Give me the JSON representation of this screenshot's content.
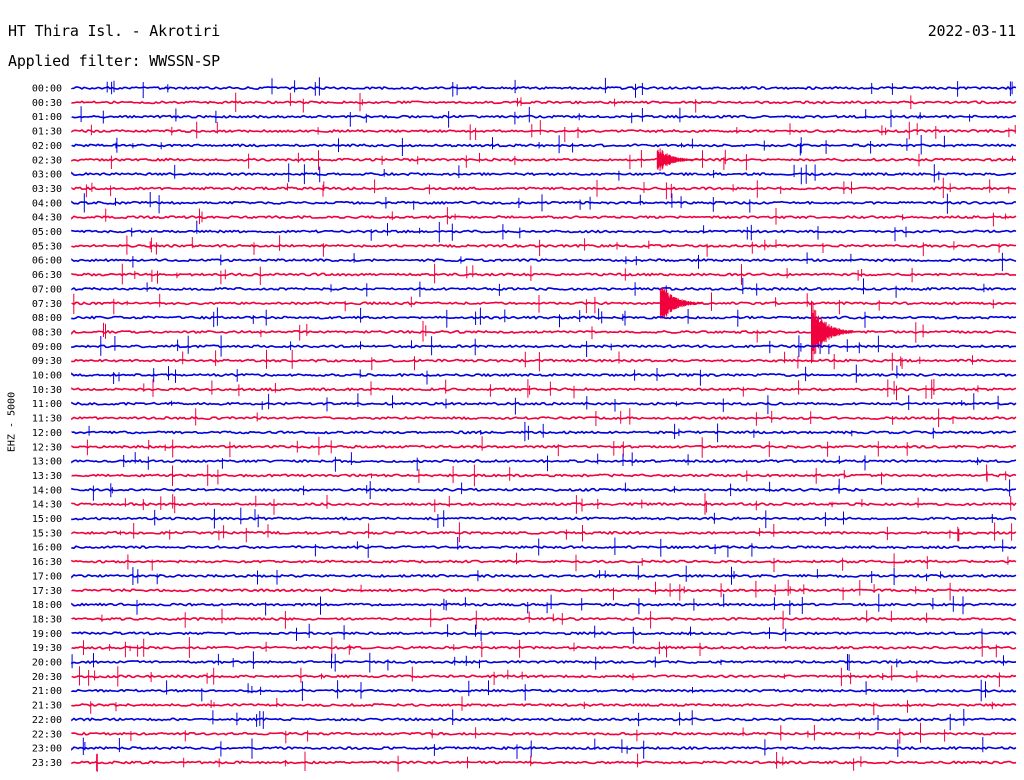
{
  "header": {
    "station": "HT Thira Isl. - Akrotiri",
    "date": "2022-03-11",
    "filter": "Applied filter: WWSSN-SP"
  },
  "chart_data": {
    "type": "line",
    "title": "HT Thira Isl. - Akrotiri",
    "subtitle": "Applied filter: WWSSN-SP",
    "date": "2022-03-11",
    "ylabel": "EHZ - 5000",
    "xlabel": "",
    "categories": [
      "00:00",
      "00:30",
      "01:00",
      "01:30",
      "02:00",
      "02:30",
      "03:00",
      "03:30",
      "04:00",
      "04:30",
      "05:00",
      "05:30",
      "06:00",
      "06:30",
      "07:00",
      "07:30",
      "08:00",
      "08:30",
      "09:00",
      "09:30",
      "10:00",
      "10:30",
      "11:00",
      "11:30",
      "12:00",
      "12:30",
      "13:00",
      "13:30",
      "14:00",
      "14:30",
      "15:00",
      "15:30",
      "16:00",
      "16:30",
      "17:00",
      "17:30",
      "18:00",
      "18:30",
      "19:00",
      "19:30",
      "20:00",
      "20:30",
      "21:00",
      "21:30",
      "22:00",
      "22:30",
      "23:00",
      "23:30"
    ],
    "trace_minutes": 30,
    "series_colors": [
      "#0000dd",
      "#f0003c"
    ],
    "events": [
      {
        "row": "02:30",
        "minute": 18.6,
        "amplitude": 1.0
      },
      {
        "row": "07:30",
        "minute": 18.7,
        "amplitude": 1.6
      },
      {
        "row": "08:30",
        "minute": 23.5,
        "amplitude": 2.4
      }
    ],
    "grid": false,
    "legend": "none"
  }
}
